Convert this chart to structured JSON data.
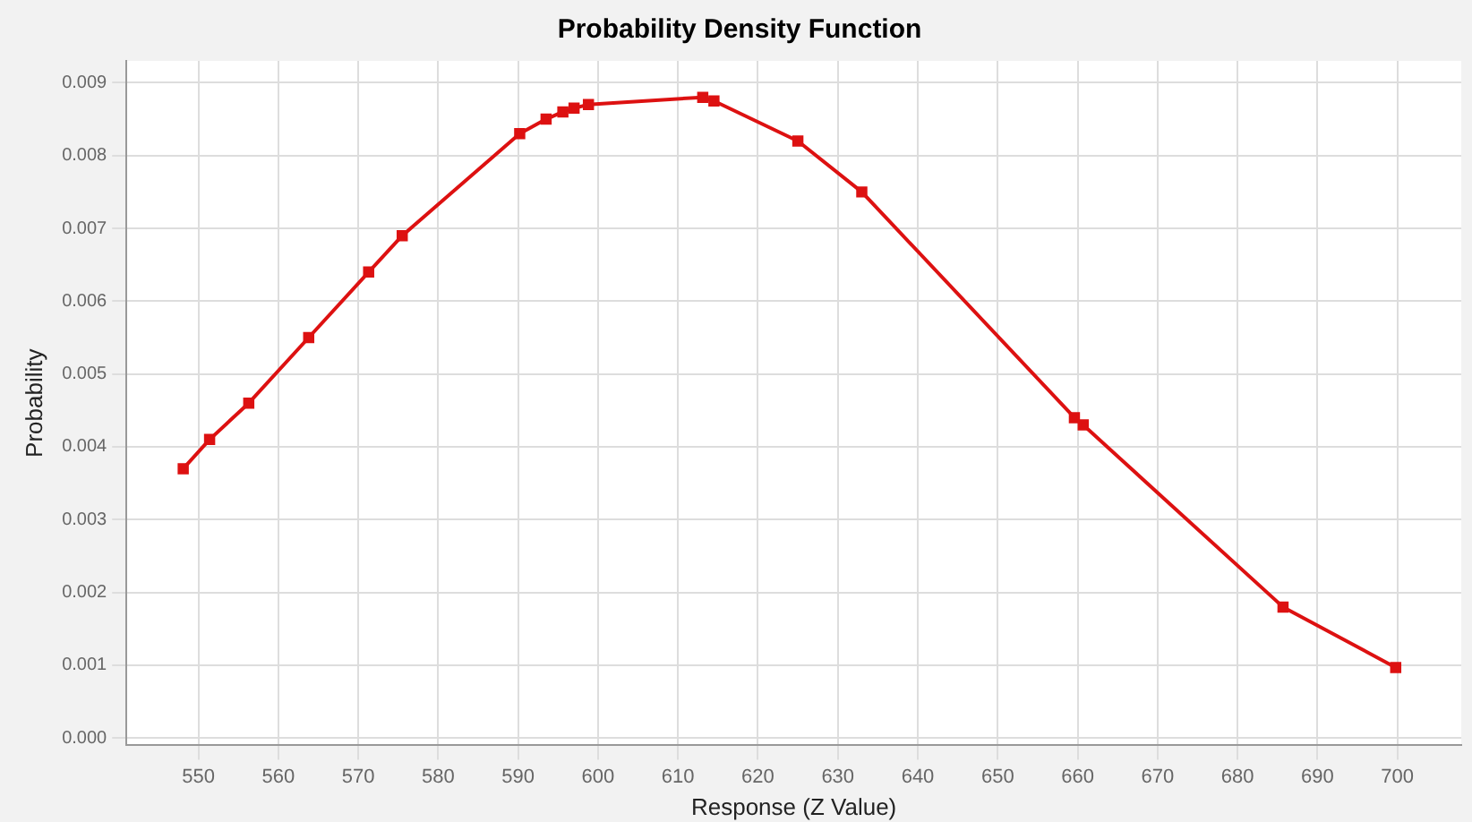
{
  "chart_data": {
    "type": "line",
    "title": "Probability Density Function",
    "xlabel": "Response (Z Value)",
    "ylabel": "Probability",
    "x": [
      548.1,
      551.4,
      556.3,
      563.8,
      571.3,
      575.5,
      590.2,
      593.5,
      595.6,
      597,
      598.8,
      613.1,
      614.5,
      625,
      633,
      659.6,
      660.7,
      685.7,
      699.8
    ],
    "series": [
      {
        "color": "#dd1111",
        "values": [
          0.0037,
          0.0041,
          0.0046,
          0.0055,
          0.0064,
          0.0069,
          0.0083,
          0.0085,
          0.0086,
          0.00865,
          0.0087,
          0.0088,
          0.00875,
          0.0082,
          0.0075,
          0.0044,
          0.0043,
          0.0018,
          0.00097
        ]
      }
    ],
    "xlim": [
      541,
      708
    ],
    "xticks": [
      550,
      560,
      570,
      580,
      590,
      600,
      610,
      620,
      630,
      640,
      650,
      660,
      670,
      680,
      690,
      700
    ],
    "ylim": [
      -0.0001,
      0.0093
    ],
    "yticks": [
      {
        "value": 0,
        "label": "0.000"
      },
      {
        "value": 0.001,
        "label": "0.001"
      },
      {
        "value": 0.002,
        "label": "0.002"
      },
      {
        "value": 0.003,
        "label": "0.003"
      },
      {
        "value": 0.004,
        "label": "0.004"
      },
      {
        "value": 0.005,
        "label": "0.005"
      },
      {
        "value": 0.006,
        "label": "0.006"
      },
      {
        "value": 0.007,
        "label": "0.007"
      },
      {
        "value": 0.008,
        "label": "0.008"
      },
      {
        "value": 0.009,
        "label": "0.009"
      }
    ],
    "grid": true,
    "legend": false,
    "marker": "square",
    "line_style": "solid"
  }
}
